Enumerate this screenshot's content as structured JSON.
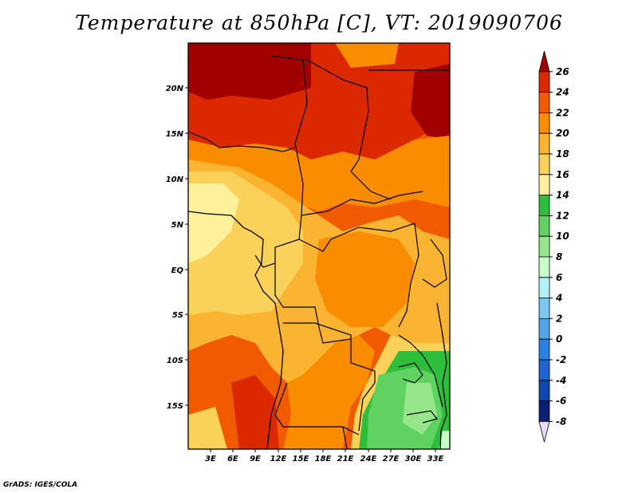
{
  "title": "Temperature at 850hPa [C], VT: 2019090706",
  "credit": "GrADS: IGES/COLA",
  "map": {
    "lon_ticks": [
      "3E",
      "6E",
      "9E",
      "12E",
      "15E",
      "18E",
      "21E",
      "24E",
      "27E",
      "30E",
      "33E"
    ],
    "lat_ticks": [
      "20N",
      "15N",
      "10N",
      "5N",
      "EQ",
      "5S",
      "10S",
      "15S"
    ],
    "lon_range": [
      0,
      34.5
    ],
    "lat_range": [
      -19.5,
      24.5
    ],
    "units": "C"
  },
  "colorbar": {
    "labels": [
      "26",
      "24",
      "22",
      "20",
      "18",
      "16",
      "14",
      "12",
      "10",
      "8",
      "6",
      "4",
      "2",
      "0",
      "-2",
      "-4",
      "-6",
      "-8"
    ],
    "colors": [
      "#a00000",
      "#dc2800",
      "#f05a00",
      "#fa8c00",
      "#fab432",
      "#fad25a",
      "#fff09b",
      "#2dbe3c",
      "#5fd25f",
      "#96e68c",
      "#c8ffc8",
      "#b4f0fa",
      "#78c8f0",
      "#50a5eb",
      "#2882e6",
      "#1e64d2",
      "#0f46af",
      "#0a1e78",
      "#e6dcf5"
    ]
  }
}
